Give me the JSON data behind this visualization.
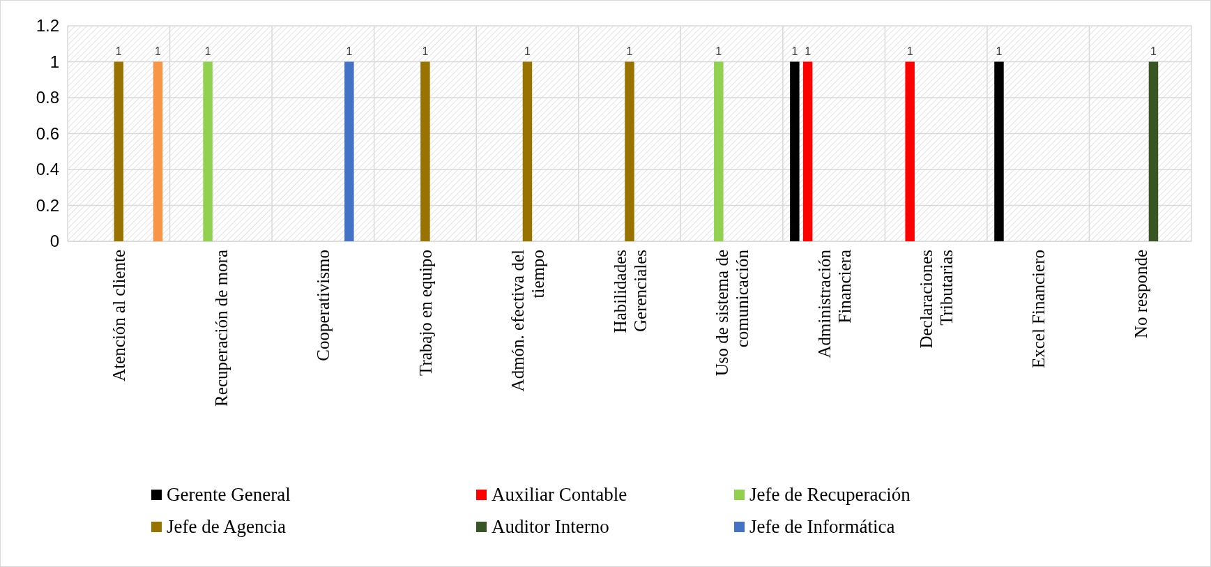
{
  "chart_data": {
    "type": "bar",
    "categories": [
      "Atención al cliente",
      "Recuperación de mora",
      "Cooperativismo",
      "Trabajo en equipo",
      "Admón. efectiva del tiempo",
      "Habilidades Gerenciales",
      "Uso de sistema de comunicación",
      "Administración Financiera",
      "Declaraciones Tributarias",
      "Excel Financiero",
      "No responde"
    ],
    "series": [
      {
        "name": "Gerente General",
        "color": "#000000",
        "values": [
          null,
          null,
          null,
          null,
          null,
          null,
          null,
          1,
          null,
          1,
          null
        ]
      },
      {
        "name": "Auxiliar Contable",
        "color": "#ff0000",
        "values": [
          null,
          null,
          null,
          null,
          null,
          null,
          null,
          1,
          1,
          null,
          null
        ]
      },
      {
        "name": "Jefe de Recuperación",
        "color": "#92d050",
        "values": [
          null,
          1,
          null,
          null,
          null,
          null,
          1,
          null,
          null,
          null,
          null
        ]
      },
      {
        "name": "Jefe de Agencia",
        "color": "#997300",
        "values": [
          1,
          null,
          null,
          1,
          1,
          1,
          null,
          null,
          null,
          null,
          null
        ]
      },
      {
        "name": "Auditor Interno",
        "color": "#375623",
        "values": [
          null,
          null,
          null,
          null,
          null,
          null,
          null,
          null,
          null,
          null,
          1
        ]
      },
      {
        "name": "Jefe de Informática",
        "color": "#4472c4",
        "values": [
          null,
          null,
          1,
          null,
          null,
          null,
          null,
          null,
          null,
          null,
          null
        ]
      },
      {
        "color": "#f79646",
        "values": [
          1,
          null,
          null,
          null,
          null,
          null,
          null,
          null,
          null,
          null,
          null
        ]
      }
    ],
    "ylim": [
      0,
      1.2
    ],
    "yticks": [
      0,
      0.2,
      0.4,
      0.6,
      0.8,
      1,
      1.2
    ],
    "grid": true,
    "legend": "bottom",
    "data_labels": true
  }
}
